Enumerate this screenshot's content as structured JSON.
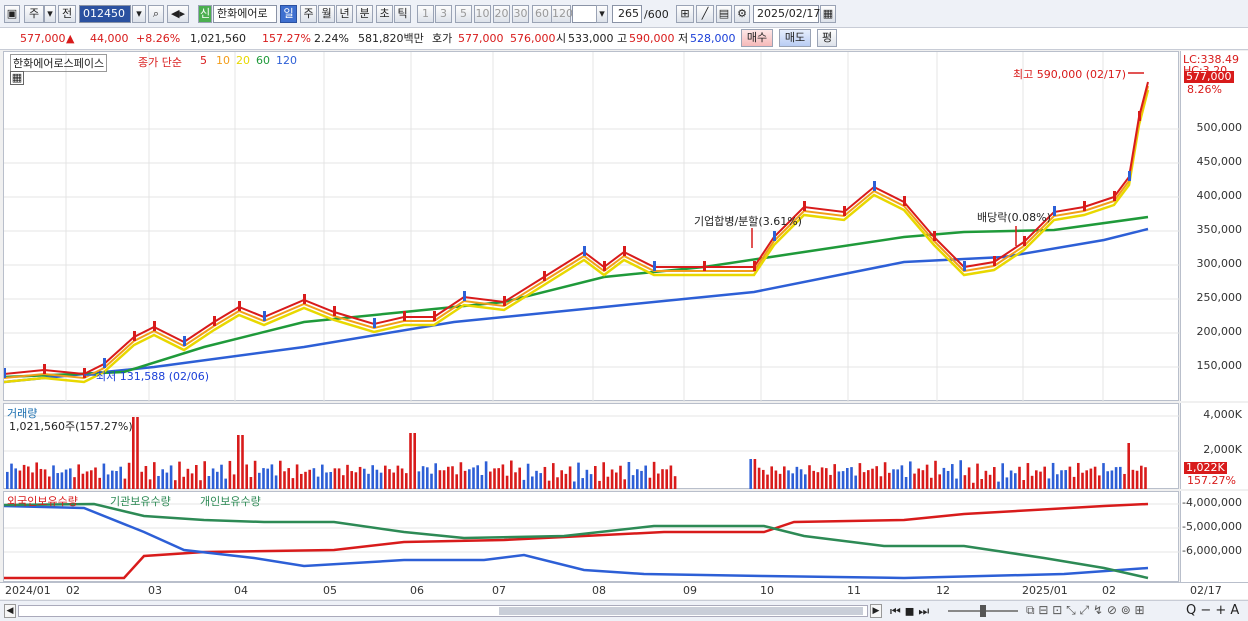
{
  "toolbar": {
    "period": "주",
    "prev": "전",
    "code": "012450",
    "new_badge": "신",
    "name": "한화에어로",
    "periods": [
      "일",
      "주",
      "월",
      "년",
      "분",
      "초",
      "틱"
    ],
    "nums": [
      "1",
      "3",
      "5",
      "10",
      "20",
      "30",
      "60",
      "120"
    ],
    "count": "265",
    "count_total": "/600",
    "date": "2025/02/17"
  },
  "quote": {
    "price": "577,000",
    "change_arrow": "▲",
    "change": "44,000",
    "pct": "+8.26%",
    "volume": "1,021,560",
    "vol_ratio": "157.27%",
    "turnover_rate": "2.24%",
    "amount": "581,820백만",
    "ask_label": "호가",
    "ask": "577,000",
    "bid": "576,000",
    "open_label": "시",
    "open": "533,000",
    "high_label": "고",
    "high": "590,000",
    "low_label": "저",
    "low": "528,000",
    "buy": "매수",
    "sell": "매도",
    "avg": "평"
  },
  "price_panel": {
    "legend_name": "한화에어로스페이스",
    "legend_type": "종가 단순",
    "ma": [
      {
        "p": "5",
        "c": "#d81b1b"
      },
      {
        "p": "10",
        "c": "#f29d1a"
      },
      {
        "p": "20",
        "c": "#e8d800"
      },
      {
        "p": "60",
        "c": "#1f9a3a"
      },
      {
        "p": "120",
        "c": "#2d5fd6"
      }
    ],
    "lc": "LC:338.49",
    "hc": "HC:3.20",
    "last_price": "577,000",
    "last_pct": "8.26%",
    "high_note": "최고 590,000 (02/17)",
    "low_note": "최저 131,588 (02/06)",
    "event1": "기업합병/분할(3.61%)",
    "event2": "배당락(0.08%)",
    "yticks": [
      "500,000",
      "450,000",
      "400,000",
      "350,000",
      "300,000",
      "250,000",
      "200,000",
      "150,000"
    ]
  },
  "volume_panel": {
    "title": "거래량",
    "info": "1,021,560주(157.27%)",
    "yticks": [
      "4,000K",
      "2,000K"
    ],
    "last": "1,022K",
    "last_pct": "157.27%"
  },
  "holdings_panel": {
    "s1": "외국인보유수량",
    "s2": "기관보유수량",
    "s3": "개인보유수량",
    "c1": "#d81b1b",
    "c2": "#2d8a55",
    "c3": "#2d5fd6",
    "yticks": [
      "-4,000,000",
      "-5,000,000",
      "-6,000,000"
    ]
  },
  "xaxis": [
    "2024/01",
    "02",
    "03",
    "04",
    "05",
    "06",
    "07",
    "08",
    "09",
    "10",
    "11",
    "12",
    "2025/01",
    "02",
    "02/17"
  ]
}
